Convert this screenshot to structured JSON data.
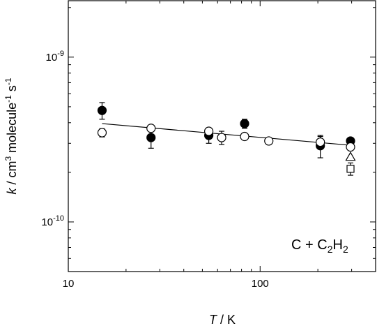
{
  "chart_data": {
    "type": "scatter",
    "title": "",
    "xscale": "log",
    "yscale": "log",
    "xlim": [
      10,
      400
    ],
    "ylim": [
      5e-11,
      2.2e-09
    ],
    "xticks": [
      {
        "value": 10,
        "label": "10"
      },
      {
        "value": 100,
        "label": "100"
      }
    ],
    "yticks": [
      {
        "value": 1e-10,
        "base": "10",
        "exp": "-10"
      },
      {
        "value": 1e-09,
        "base": "10",
        "exp": "-9"
      }
    ],
    "xlabel": {
      "italic": "T",
      "rest": " / K"
    },
    "ylabel": {
      "italic": "k",
      "p1": " / cm",
      "sup1": "3",
      "p2": " molecule",
      "sup2": "-1",
      "p3": " s",
      "sup3": "-1"
    },
    "annotation": {
      "p1": "C + C",
      "sub": "2",
      "p2": "H",
      "sub2": "2"
    },
    "grid": false,
    "series": [
      {
        "marker": "filled-circle",
        "points": [
          {
            "x": 15,
            "y": 4.75e-10,
            "err": 5.5e-11
          },
          {
            "x": 27,
            "y": 3.25e-10,
            "err": 4.5e-11
          },
          {
            "x": 54,
            "y": 3.35e-10,
            "err": 3.5e-11
          },
          {
            "x": 83,
            "y": 3.95e-10,
            "err": 2.5e-11
          },
          {
            "x": 206,
            "y": 2.9e-10,
            "err": 4.5e-11
          },
          {
            "x": 296,
            "y": 3.1e-10,
            "err": 1e-11
          }
        ]
      },
      {
        "marker": "open-circle",
        "points": [
          {
            "x": 15,
            "y": 3.48e-10,
            "err": 2e-11
          },
          {
            "x": 27,
            "y": 3.7e-10,
            "err": 1.2e-11
          },
          {
            "x": 54,
            "y": 3.55e-10,
            "err": 1.5e-11
          },
          {
            "x": 63,
            "y": 3.25e-10,
            "err": 3e-11
          },
          {
            "x": 83,
            "y": 3.3e-10,
            "err": 1e-11
          },
          {
            "x": 111,
            "y": 3.1e-10,
            "err": 0.0
          },
          {
            "x": 206,
            "y": 3.05e-10,
            "err": 2.5e-11
          },
          {
            "x": 296,
            "y": 2.85e-10,
            "err": 1e-11
          }
        ]
      },
      {
        "marker": "open-triangle",
        "points": [
          {
            "x": 296,
            "y": 2.48e-10,
            "err": 0.0
          }
        ]
      },
      {
        "marker": "open-square",
        "points": [
          {
            "x": 296,
            "y": 2.1e-10,
            "err": 1.8e-11
          }
        ]
      }
    ],
    "fit_line": {
      "x": [
        15,
        296
      ],
      "y": [
        3.95e-10,
        2.92e-10
      ]
    }
  }
}
